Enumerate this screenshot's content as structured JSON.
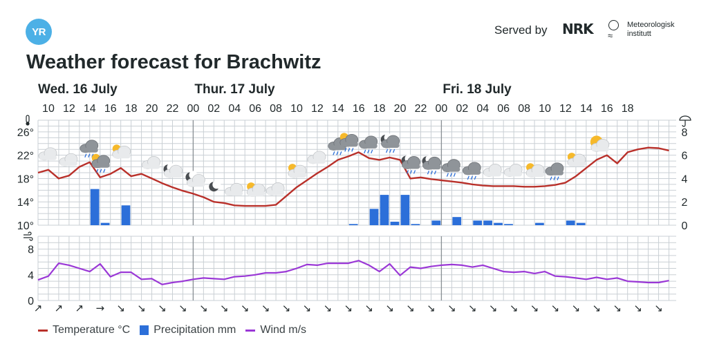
{
  "brand": {
    "logo_text": "YR",
    "served_by": "Served by",
    "nrk_logo": "NRK",
    "met_name_line1": "Meteorologisk",
    "met_name_line2": "institutt"
  },
  "chart_data": {
    "type": "line",
    "title": "Weather forecast for Brachwitz",
    "days": [
      {
        "label": "Wed. 16 July",
        "start_hour": 9
      },
      {
        "label": "Thur. 17 July",
        "start_hour": 24
      },
      {
        "label": "Fri. 18 July",
        "start_hour": 48
      }
    ],
    "x_tick_labels": [
      "10",
      "12",
      "14",
      "16",
      "18",
      "20",
      "22",
      "00",
      "02",
      "04",
      "06",
      "08",
      "10",
      "12",
      "14",
      "16",
      "18",
      "20",
      "22",
      "00",
      "02",
      "04",
      "06",
      "08",
      "10",
      "12",
      "14",
      "16",
      "18"
    ],
    "temperature": {
      "name": "Temperature °C",
      "unit": "°C",
      "ylim": [
        10,
        28
      ],
      "ticks": [
        10,
        14,
        18,
        22,
        26
      ],
      "tick_labels": [
        "10°",
        "14°",
        "18°",
        "22°",
        "26°"
      ],
      "hourly": [
        19.0,
        19.5,
        18.0,
        18.5,
        20.0,
        20.8,
        18.2,
        18.8,
        19.8,
        18.4,
        18.8,
        18.0,
        17.2,
        16.5,
        15.9,
        15.4,
        14.8,
        14.0,
        13.8,
        13.4,
        13.3,
        13.3,
        13.3,
        13.5,
        15.0,
        16.5,
        17.7,
        18.9,
        20.0,
        21.2,
        21.8,
        22.5,
        21.5,
        21.2,
        21.6,
        21.2,
        18.0,
        18.2,
        17.9,
        17.7,
        17.5,
        17.3,
        17.0,
        16.8,
        16.7,
        16.7,
        16.7,
        16.6,
        16.6,
        16.7,
        16.9,
        17.3,
        18.4,
        19.8,
        21.2,
        22.0,
        20.6,
        22.5,
        23.0,
        23.3,
        23.2,
        22.8
      ]
    },
    "precipitation": {
      "name": "Precipitation mm",
      "unit": "mm",
      "ylim": [
        0,
        9
      ],
      "ticks": [
        0,
        2,
        4,
        6,
        8
      ],
      "tick_labels": [
        "0",
        "2",
        "4",
        "6",
        "8"
      ],
      "bars": [
        {
          "hour": 14,
          "value": 3.1
        },
        {
          "hour": 15,
          "value": 0.2
        },
        {
          "hour": 17,
          "value": 1.7
        },
        {
          "hour": 39,
          "value": 0.1
        },
        {
          "hour": 41,
          "value": 1.4
        },
        {
          "hour": 42,
          "value": 2.6
        },
        {
          "hour": 43,
          "value": 0.3
        },
        {
          "hour": 44,
          "value": 2.6
        },
        {
          "hour": 45,
          "value": 0.1
        },
        {
          "hour": 47,
          "value": 0.4
        },
        {
          "hour": 49,
          "value": 0.7
        },
        {
          "hour": 51,
          "value": 0.4
        },
        {
          "hour": 52,
          "value": 0.4
        },
        {
          "hour": 53,
          "value": 0.2
        },
        {
          "hour": 54,
          "value": 0.1
        },
        {
          "hour": 57,
          "value": 0.2
        },
        {
          "hour": 60,
          "value": 0.4
        },
        {
          "hour": 61,
          "value": 0.2
        }
      ]
    },
    "wind": {
      "name": "Wind m/s",
      "unit": "m/s",
      "ylim": [
        0,
        10
      ],
      "ticks": [
        0,
        4,
        8
      ],
      "tick_labels": [
        "0",
        "4",
        "8"
      ],
      "hourly": [
        3.2,
        3.8,
        5.8,
        5.5,
        5.0,
        4.5,
        5.7,
        3.7,
        4.4,
        4.4,
        3.3,
        3.4,
        2.5,
        2.8,
        3.0,
        3.3,
        3.5,
        3.4,
        3.3,
        3.7,
        3.8,
        4.0,
        4.3,
        4.3,
        4.5,
        5.0,
        5.6,
        5.5,
        5.8,
        5.8,
        5.8,
        6.2,
        5.5,
        4.5,
        5.7,
        3.9,
        5.2,
        5.0,
        5.3,
        5.5,
        5.6,
        5.5,
        5.2,
        5.5,
        5.0,
        4.5,
        4.4,
        4.5,
        4.2,
        4.5,
        3.8,
        3.7,
        3.5,
        3.3,
        3.6,
        3.3,
        3.5,
        3.0,
        2.9,
        2.8,
        2.8,
        3.1
      ]
    },
    "wind_direction_arrows": [
      "↗",
      "↗",
      "↗",
      "→",
      "↘",
      "↘",
      "↘",
      "↘",
      "↘",
      "↘",
      "↘",
      "↘",
      "↘",
      "↘",
      "↘",
      "↘",
      "↘",
      "↘",
      "↘",
      "↘",
      "↘",
      "↘",
      "↘",
      "↘",
      "↘",
      "↘",
      "↘",
      "↘",
      "↘",
      "↘",
      "↘"
    ],
    "weather_symbols": [
      {
        "hour": 10,
        "icon": "cloudy-icon"
      },
      {
        "hour": 12,
        "icon": "cloudy-icon"
      },
      {
        "hour": 14,
        "icon": "rain-showers-icon"
      },
      {
        "hour": 15,
        "icon": "partly-cloudy-rain-icon"
      },
      {
        "hour": 17,
        "icon": "partly-cloudy-icon"
      },
      {
        "hour": 20,
        "icon": "cloudy-icon"
      },
      {
        "hour": 22,
        "icon": "cloudy-night-icon"
      },
      {
        "hour": 24,
        "icon": "moon-cloud-icon"
      },
      {
        "hour": 26,
        "icon": "moon-icon"
      },
      {
        "hour": 28,
        "icon": "cloudy-icon"
      },
      {
        "hour": 30,
        "icon": "partly-cloudy-icon"
      },
      {
        "hour": 32,
        "icon": "cloudy-icon"
      },
      {
        "hour": 34,
        "icon": "partly-cloudy-icon"
      },
      {
        "hour": 36,
        "icon": "cloudy-icon"
      },
      {
        "hour": 38,
        "icon": "rain-showers-icon"
      },
      {
        "hour": 39,
        "icon": "thunder-rain-icon"
      },
      {
        "hour": 41,
        "icon": "rain-showers-icon"
      },
      {
        "hour": 43,
        "icon": "night-rain-icon"
      },
      {
        "hour": 45,
        "icon": "night-rain-icon"
      },
      {
        "hour": 47,
        "icon": "night-rain-icon"
      },
      {
        "hour": 49,
        "icon": "rain-showers-icon"
      },
      {
        "hour": 51,
        "icon": "rain-showers-icon"
      },
      {
        "hour": 53,
        "icon": "cloudy-icon"
      },
      {
        "hour": 55,
        "icon": "cloudy-icon"
      },
      {
        "hour": 57,
        "icon": "partly-cloudy-icon"
      },
      {
        "hour": 59,
        "icon": "rain-showers-icon"
      },
      {
        "hour": 61,
        "icon": "partly-cloudy-icon"
      },
      {
        "hour": 63,
        "icon": "sun-icon"
      }
    ],
    "colors": {
      "temperature": "#b9302a",
      "precipitation": "#2c6fd9",
      "wind": "#9a37d6",
      "grid": "#c9cfd4",
      "day_divider": "#8a9095",
      "text": "#21292b"
    }
  }
}
